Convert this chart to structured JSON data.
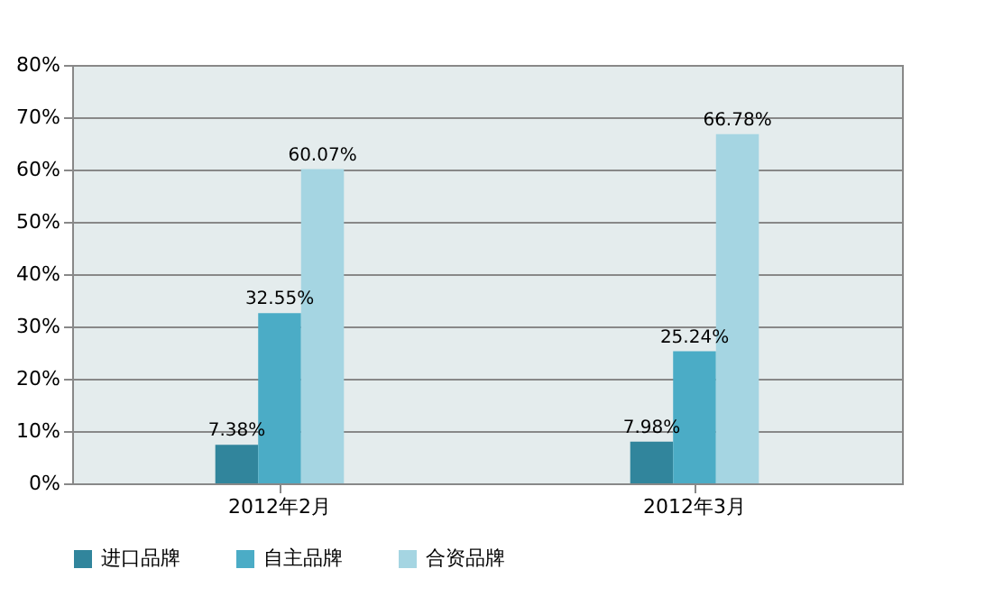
{
  "chart_data": {
    "type": "bar",
    "categories": [
      "2012年2月",
      "2012年3月"
    ],
    "series": [
      {
        "name": "进口品牌",
        "color": "#31859c",
        "values": [
          7.38,
          7.98
        ],
        "value_labels": [
          "7.38%",
          "7.98%"
        ]
      },
      {
        "name": "自主品牌",
        "color": "#4bacc6",
        "values": [
          32.55,
          25.24
        ],
        "value_labels": [
          "32.55%",
          "25.24%"
        ]
      },
      {
        "name": "合资品牌",
        "color": "#a5d5e2",
        "values": [
          60.07,
          66.78
        ],
        "value_labels": [
          "60.07%",
          "66.78%"
        ]
      }
    ],
    "ylim": [
      0,
      80
    ],
    "yticks": [
      {
        "value": 0,
        "label": "0%"
      },
      {
        "value": 10,
        "label": "10%"
      },
      {
        "value": 20,
        "label": "20%"
      },
      {
        "value": 30,
        "label": "30%"
      },
      {
        "value": 40,
        "label": "40%"
      },
      {
        "value": 50,
        "label": "50%"
      },
      {
        "value": 60,
        "label": "60%"
      },
      {
        "value": 70,
        "label": "70%"
      },
      {
        "value": 80,
        "label": "80%"
      }
    ],
    "grid": "y",
    "legend": "bottom"
  }
}
